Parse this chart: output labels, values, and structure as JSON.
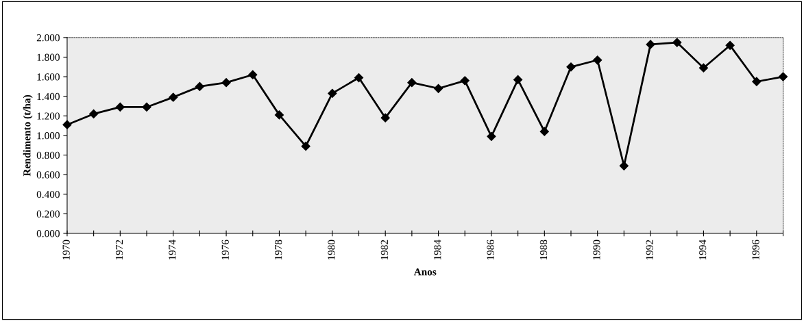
{
  "chart_data": {
    "type": "line",
    "xlabel": "Anos",
    "ylabel": "Rendimento (t/ha)",
    "x": [
      1970,
      1971,
      1972,
      1973,
      1974,
      1975,
      1976,
      1977,
      1978,
      1979,
      1980,
      1981,
      1982,
      1983,
      1984,
      1985,
      1986,
      1987,
      1988,
      1989,
      1990,
      1991,
      1992,
      1993,
      1994,
      1995,
      1996,
      1997
    ],
    "series": [
      {
        "color": "#000000",
        "values": [
          1.11,
          1.22,
          1.29,
          1.29,
          1.39,
          1.5,
          1.54,
          1.62,
          1.21,
          0.89,
          1.43,
          1.59,
          1.18,
          1.54,
          1.48,
          1.56,
          0.99,
          1.57,
          1.04,
          1.7,
          1.77,
          0.69,
          1.93,
          1.95,
          1.69,
          1.92,
          1.55,
          1.6
        ]
      }
    ],
    "xlim": [
      1970,
      1997
    ],
    "xticks": [
      1970,
      {
        "value": 1971,
        "label": null
      },
      1972,
      {
        "value": 1973,
        "label": null
      },
      1974,
      {
        "value": 1975,
        "label": null
      },
      1976,
      {
        "value": 1977,
        "label": null
      },
      1978,
      {
        "value": 1979,
        "label": null
      },
      1980,
      {
        "value": 1981,
        "label": null
      },
      1982,
      {
        "value": 1983,
        "label": null
      },
      1984,
      {
        "value": 1985,
        "label": null
      },
      1986,
      {
        "value": 1987,
        "label": null
      },
      1988,
      {
        "value": 1989,
        "label": null
      },
      1990,
      {
        "value": 1991,
        "label": null
      },
      1992,
      {
        "value": 1993,
        "label": null
      },
      1994,
      {
        "value": 1995,
        "label": null
      },
      1996,
      {
        "value": 1997,
        "label": null
      }
    ],
    "ylim": [
      0,
      2
    ],
    "yticks": [
      {
        "value": 0,
        "label": "0.000"
      },
      {
        "value": 0.2,
        "label": "0.200"
      },
      {
        "value": 0.4,
        "label": "0.400"
      },
      {
        "value": 0.6,
        "label": "0.600"
      },
      {
        "value": 0.8,
        "label": "0.800"
      },
      {
        "value": 1.0,
        "label": "1.000"
      },
      {
        "value": 1.2,
        "label": "1.200"
      },
      {
        "value": 1.4,
        "label": "1.400"
      },
      {
        "value": 1.6,
        "label": "1.600"
      },
      {
        "value": 1.8,
        "label": "1.800"
      },
      {
        "value": 2.0,
        "label": "2.000"
      }
    ],
    "grid": false,
    "marker": "diamond",
    "line_style": "solid"
  }
}
